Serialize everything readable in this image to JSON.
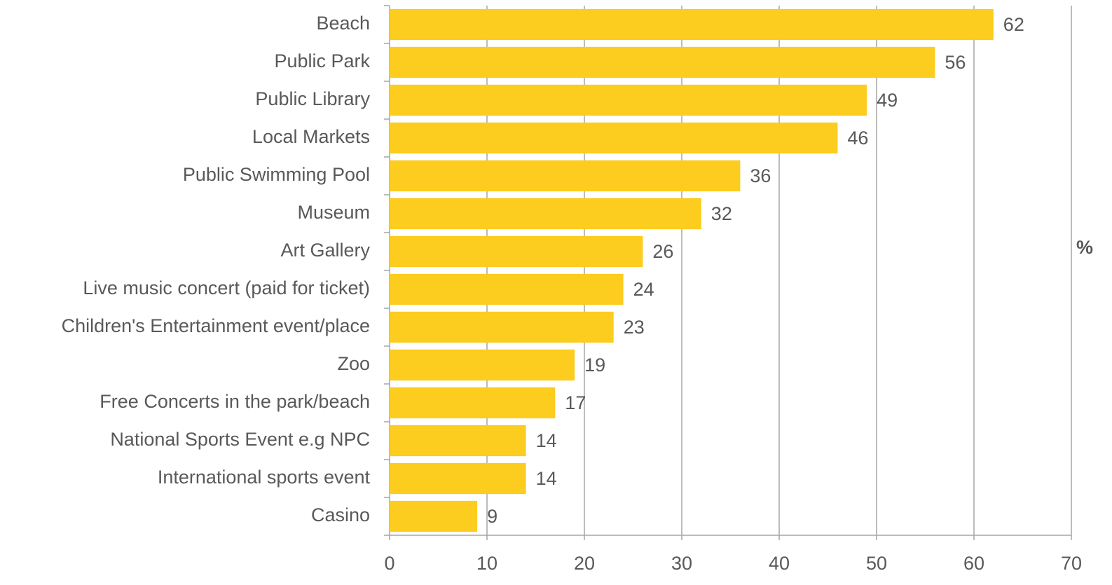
{
  "chart_data": {
    "type": "barh",
    "categories": [
      "Beach",
      "Public Park",
      "Public Library",
      "Local Markets",
      "Public Swimming Pool",
      "Museum",
      "Art Gallery",
      "Live music concert (paid for ticket)",
      "Children's Entertainment event/place",
      "Zoo",
      "Free Concerts in the park/beach",
      "National Sports Event e.g NPC",
      "International sports event",
      "Casino"
    ],
    "values": [
      62,
      56,
      49,
      46,
      36,
      32,
      26,
      24,
      23,
      19,
      17,
      14,
      14,
      9
    ],
    "color": "#fccc1e",
    "xlabel": "%",
    "xlim": [
      0,
      70
    ],
    "xticks": [
      0,
      10,
      20,
      30,
      40,
      50,
      60,
      70
    ],
    "grid": true
  }
}
